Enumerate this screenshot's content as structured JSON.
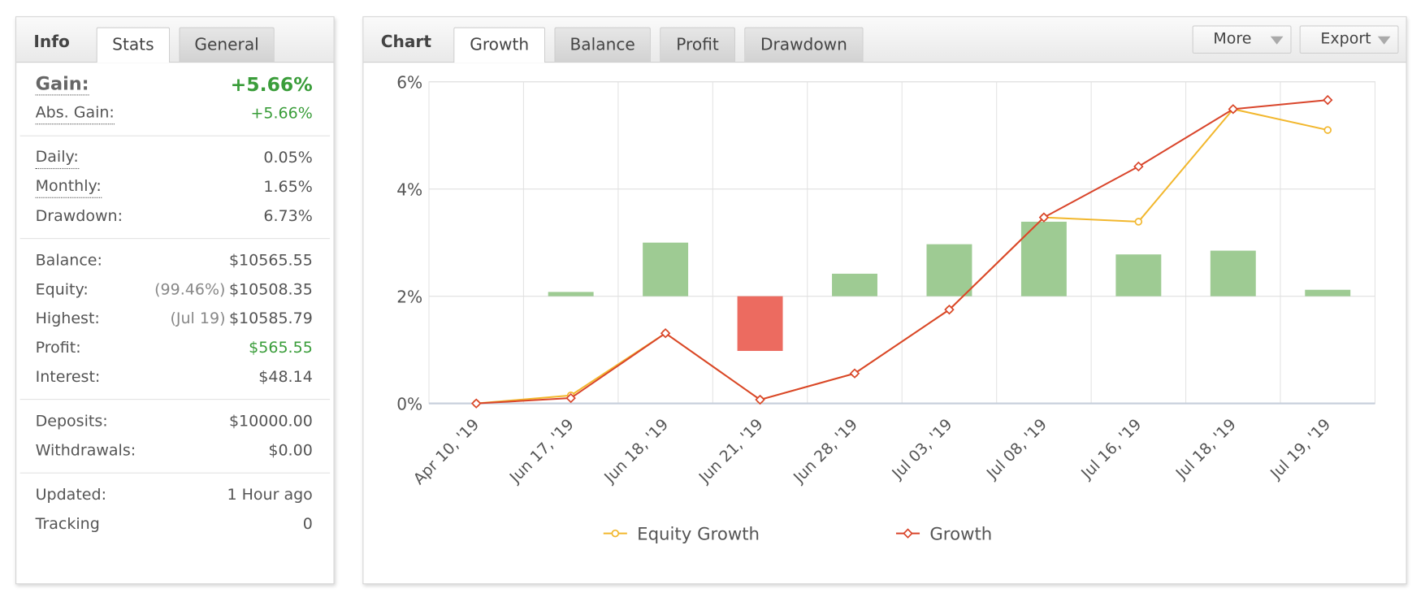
{
  "info": {
    "title": "Info",
    "tabs": [
      "Stats",
      "General"
    ],
    "groups": [
      {
        "rows": [
          {
            "label": "Gain:",
            "value": "+5.66%",
            "color": "#3a9d3a"
          },
          {
            "label": "Abs. Gain:",
            "value": "+5.66%",
            "color": "#3a9d3a"
          }
        ]
      },
      {
        "rows": [
          {
            "label": "Daily:",
            "value": "0.05%"
          },
          {
            "label": "Monthly:",
            "value": "1.65%"
          },
          {
            "label": "Drawdown:",
            "value": "6.73%"
          }
        ]
      },
      {
        "rows": [
          {
            "label": "Balance:",
            "value": "$10565.55"
          },
          {
            "label": "Equity:",
            "note": "(99.46%)",
            "value": "$10508.35"
          },
          {
            "label": "Highest:",
            "note": "(Jul 19)",
            "value": "$10585.79"
          },
          {
            "label": "Profit:",
            "value": "$565.55",
            "color": "#3a9d3a"
          },
          {
            "label": "Interest:",
            "value": "$48.14"
          }
        ]
      },
      {
        "rows": [
          {
            "label": "Deposits:",
            "value": "$10000.00"
          },
          {
            "label": "Withdrawals:",
            "value": "$0.00"
          }
        ]
      },
      {
        "rows": [
          {
            "label": "Updated:",
            "value": "1 Hour ago"
          },
          {
            "label": "Tracking",
            "value": "0"
          }
        ]
      }
    ]
  },
  "chart_panel": {
    "title": "Chart",
    "tabs": [
      "Growth",
      "Balance",
      "Profit",
      "Drawdown"
    ],
    "buttons": [
      "More",
      "Export"
    ]
  },
  "chart_data": {
    "type": "line",
    "categories": [
      "Apr 10, '19",
      "Jun 17, '19",
      "Jun 18, '19",
      "Jun 21, '19",
      "Jun 28, '19",
      "Jul 03, '19",
      "Jul 08, '19",
      "Jul 16, '19",
      "Jul 18, '19",
      "Jul 19, '19"
    ],
    "ylim": [
      0,
      6
    ],
    "yticks": [
      {
        "value": 0,
        "label": "0%"
      },
      {
        "value": 2,
        "label": "2%"
      },
      {
        "value": 4,
        "label": "4%"
      },
      {
        "value": 6,
        "label": "6%"
      }
    ],
    "y2lim": [
      -2,
      4
    ],
    "grid": true,
    "legend": "bottom",
    "series": [
      {
        "type": "bar",
        "axis": "y2",
        "color": "#9ecb93",
        "negative_color": "#ec6b60",
        "values": [
          null,
          0.08,
          1.0,
          -1.02,
          0.42,
          0.97,
          1.39,
          0.78,
          0.85,
          0.12
        ]
      },
      {
        "type": "line",
        "name": "Equity Growth",
        "color": "#f2b72d",
        "marker": "circle",
        "values": [
          0,
          0.15,
          1.31,
          0.07,
          0.56,
          1.75,
          3.47,
          3.39,
          5.49,
          5.1
        ]
      },
      {
        "type": "line",
        "name": "Growth",
        "color": "#d9452b",
        "marker": "diamond",
        "values": [
          0,
          0.1,
          1.31,
          0.07,
          0.56,
          1.75,
          3.47,
          4.42,
          5.49,
          5.66
        ]
      }
    ]
  }
}
